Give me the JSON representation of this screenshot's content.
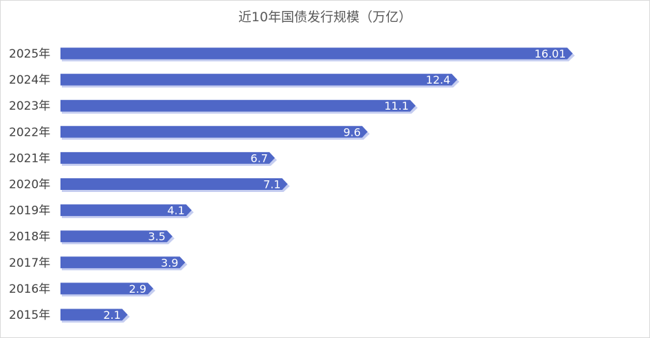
{
  "chart_data": {
    "type": "bar",
    "orientation": "horizontal",
    "title": "近10年国债发行规模（万亿）",
    "categories": [
      "2025年",
      "2024年",
      "2023年",
      "2022年",
      "2021年",
      "2020年",
      "2019年",
      "2018年",
      "2017年",
      "2016年",
      "2015年"
    ],
    "values": [
      16.01,
      12.4,
      11.1,
      9.6,
      6.7,
      7.1,
      4.1,
      3.5,
      3.9,
      2.9,
      2.1
    ],
    "value_labels": [
      "16.01",
      "12.4",
      "11.1",
      "9.6",
      "6.7",
      "7.1",
      "4.1",
      "3.5",
      "3.9",
      "2.9",
      "2.1"
    ],
    "xlim": [
      0,
      16.6
    ],
    "grid": false,
    "legend": "none",
    "bar_color": "#4f67c7",
    "shadow_color": "#c5cdf0"
  }
}
